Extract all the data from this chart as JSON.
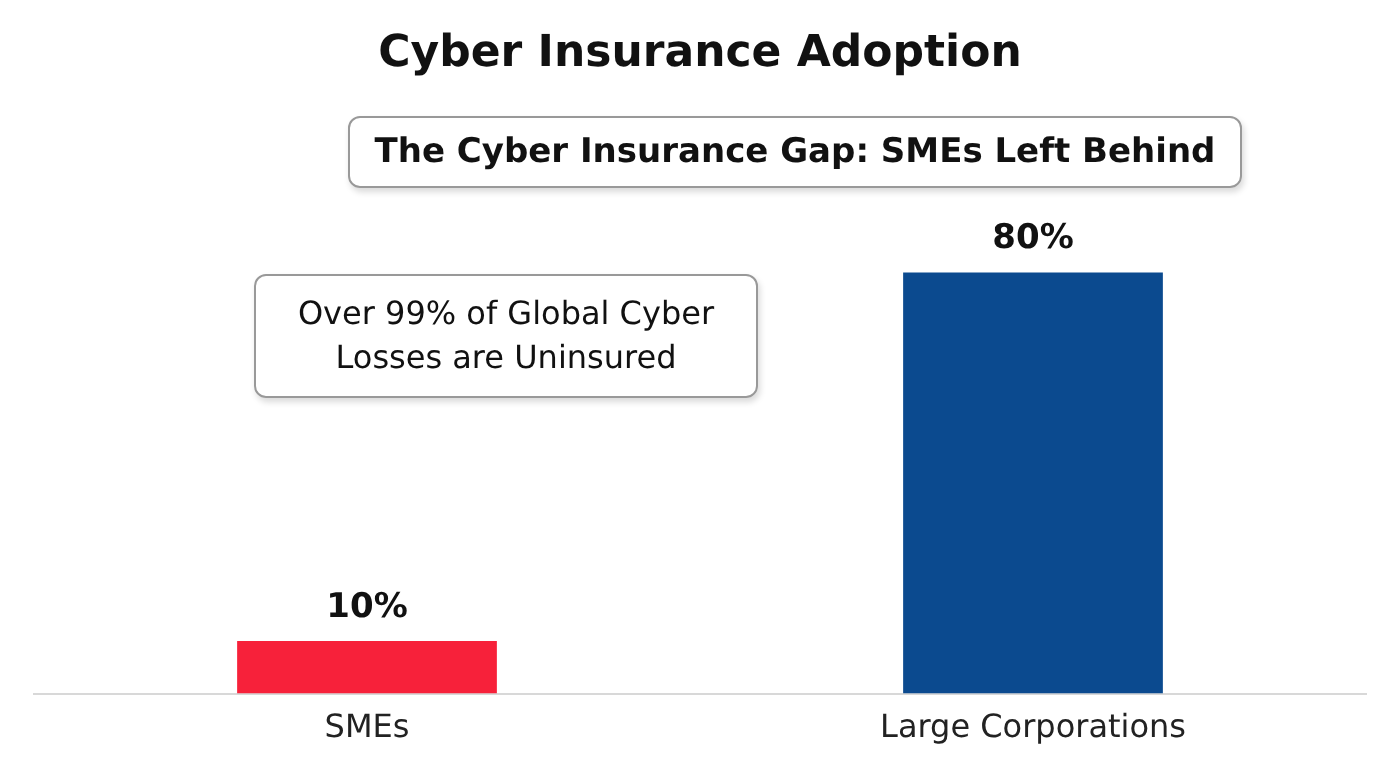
{
  "chart_data": {
    "type": "bar",
    "title": "Cyber Insurance Adoption",
    "subtitle": "The Cyber Insurance Gap: SMEs Left Behind",
    "annotations": [
      "Over 99% of Global Cyber Losses are Uninsured"
    ],
    "categories": [
      "SMEs",
      "Large Corporations"
    ],
    "values": [
      10,
      80
    ],
    "colors": [
      "#f7213a",
      "#0b4a8f"
    ],
    "value_labels": [
      "10%",
      "80%"
    ],
    "grid": false,
    "legend": false
  }
}
